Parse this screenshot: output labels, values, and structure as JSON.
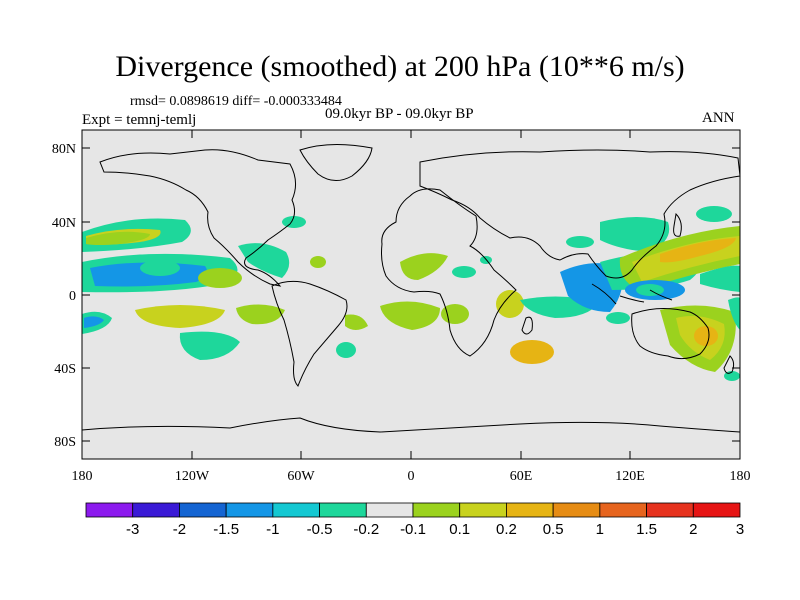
{
  "title": "Divergence (smoothed) at 200 hPa (10**6 m/s)",
  "stats": "rmsd= 0.0898619 diff= -0.000333484",
  "experiment": "Expt = temnj-temlj",
  "period": "09.0kyr BP - 09.0kyr BP",
  "season": "ANN",
  "map": {
    "lat_ticks": [
      "80N",
      "40N",
      "0",
      "40S",
      "80S"
    ],
    "lon_ticks": [
      "180",
      "120W",
      "60W",
      "0",
      "60E",
      "120E",
      "180"
    ],
    "ocean_color": "#e6e6e6",
    "coast_color": "#000000"
  },
  "colorbar": {
    "colors": [
      "#8c1aee",
      "#3a1ad6",
      "#1464d2",
      "#1496e6",
      "#14c8d2",
      "#1ed79b",
      "#e6e6e6",
      "#9bd21e",
      "#c8d21e",
      "#e6b414",
      "#e68c14",
      "#e6641e",
      "#e6321e",
      "#e61414"
    ],
    "labels": [
      "-3",
      "-2",
      "-1.5",
      "-1",
      "-0.5",
      "-0.2",
      "-0.1",
      "0.1",
      "0.2",
      "0.5",
      "1",
      "1.5",
      "2",
      "3"
    ]
  }
}
